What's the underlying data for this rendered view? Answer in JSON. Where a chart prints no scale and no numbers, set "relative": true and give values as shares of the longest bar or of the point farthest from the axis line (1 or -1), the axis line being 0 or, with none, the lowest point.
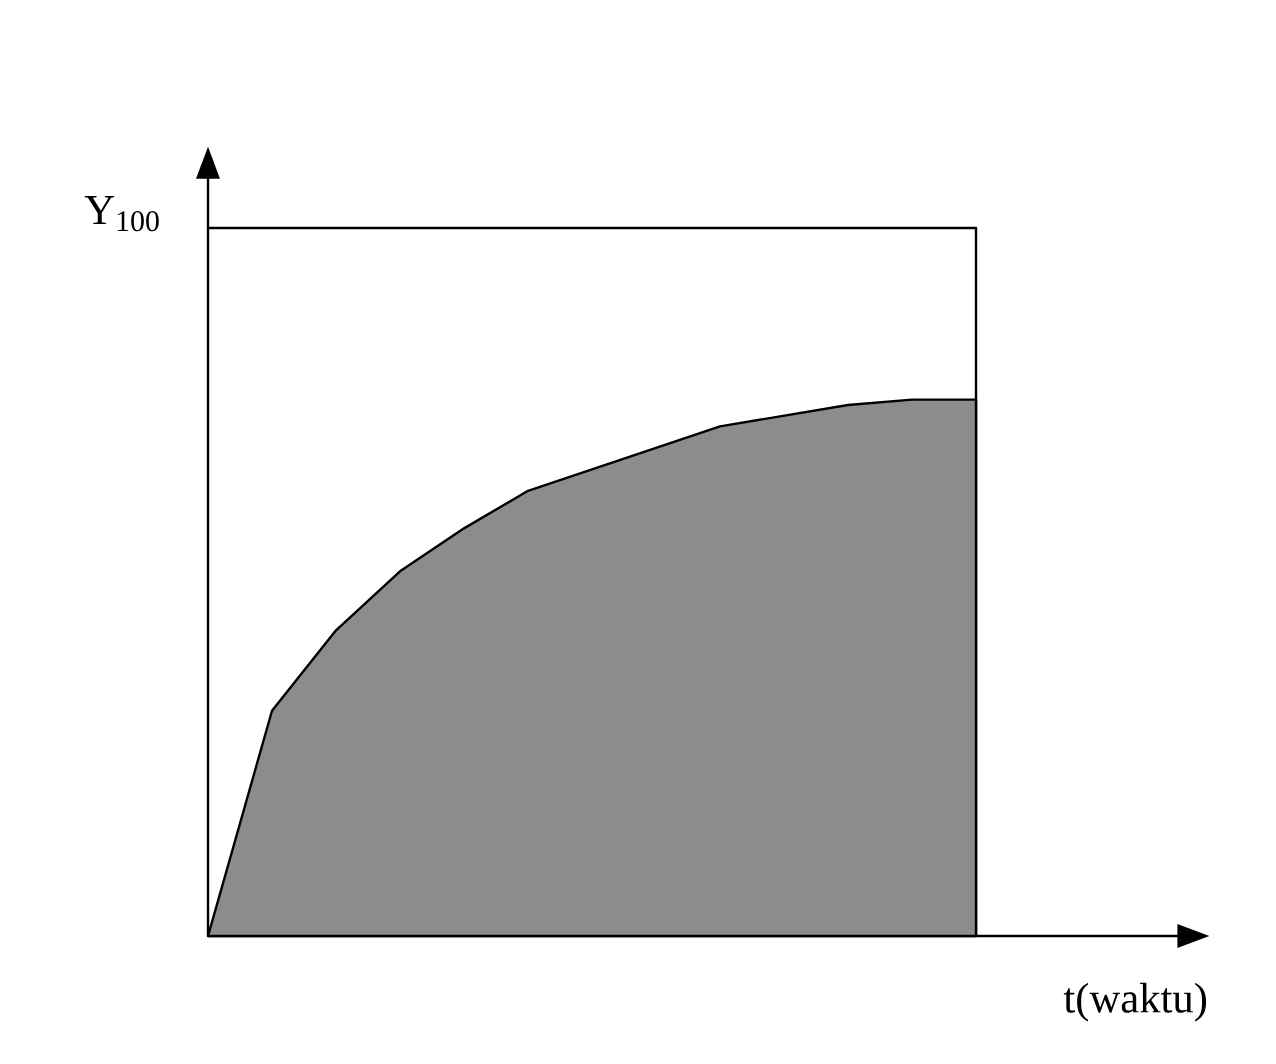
{
  "chart_data": {
    "type": "area",
    "relative": true,
    "xlabel": "t(waktu)",
    "ylabel": "Y$_{100}$",
    "categories": [
      null,
      null,
      null,
      null,
      null,
      null,
      null,
      null,
      null,
      null,
      null,
      null,
      null
    ],
    "ref_lines": [
      {
        "axis": "y",
        "value": 1.32,
        "color": "#000000"
      }
    ],
    "series": [
      {
        "color": "#8c8c8c",
        "values": [
          0,
          0.42,
          0.57,
          0.68,
          0.76,
          0.83,
          0.87,
          0.91,
          0.95,
          0.97,
          0.99,
          1,
          1
        ]
      }
    ]
  }
}
